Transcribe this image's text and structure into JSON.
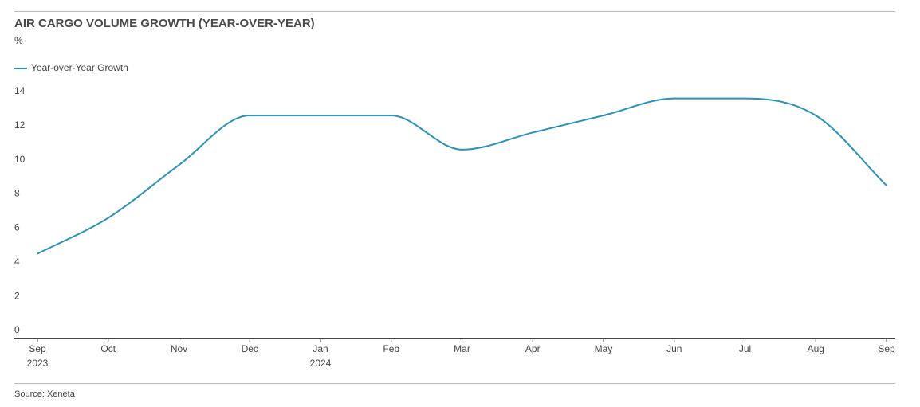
{
  "chart_data": {
    "type": "line",
    "title": "AIR CARGO VOLUME GROWTH (YEAR-OVER-YEAR)",
    "y_label": "%",
    "categories": [
      "Sep",
      "Oct",
      "Nov",
      "Dec",
      "Jan",
      "Feb",
      "Mar",
      "Apr",
      "May",
      "Jun",
      "Jul",
      "Aug",
      "Sep"
    ],
    "category_years": [
      "2023",
      null,
      null,
      null,
      "2024",
      null,
      null,
      null,
      null,
      null,
      null,
      null,
      null
    ],
    "series": [
      {
        "name": "Year-over-Year Growth",
        "color": "#2a91b8",
        "values": [
          4.5,
          6.6,
          9.7,
          12.6,
          12.6,
          12.6,
          10.6,
          11.6,
          12.6,
          13.6,
          13.6,
          12.6,
          8.5
        ]
      }
    ],
    "ylim": [
      0,
      14
    ],
    "yticks": [
      0,
      2,
      4,
      6,
      8,
      10,
      12,
      14
    ],
    "grid": false,
    "source": "Source: Xeneta"
  }
}
